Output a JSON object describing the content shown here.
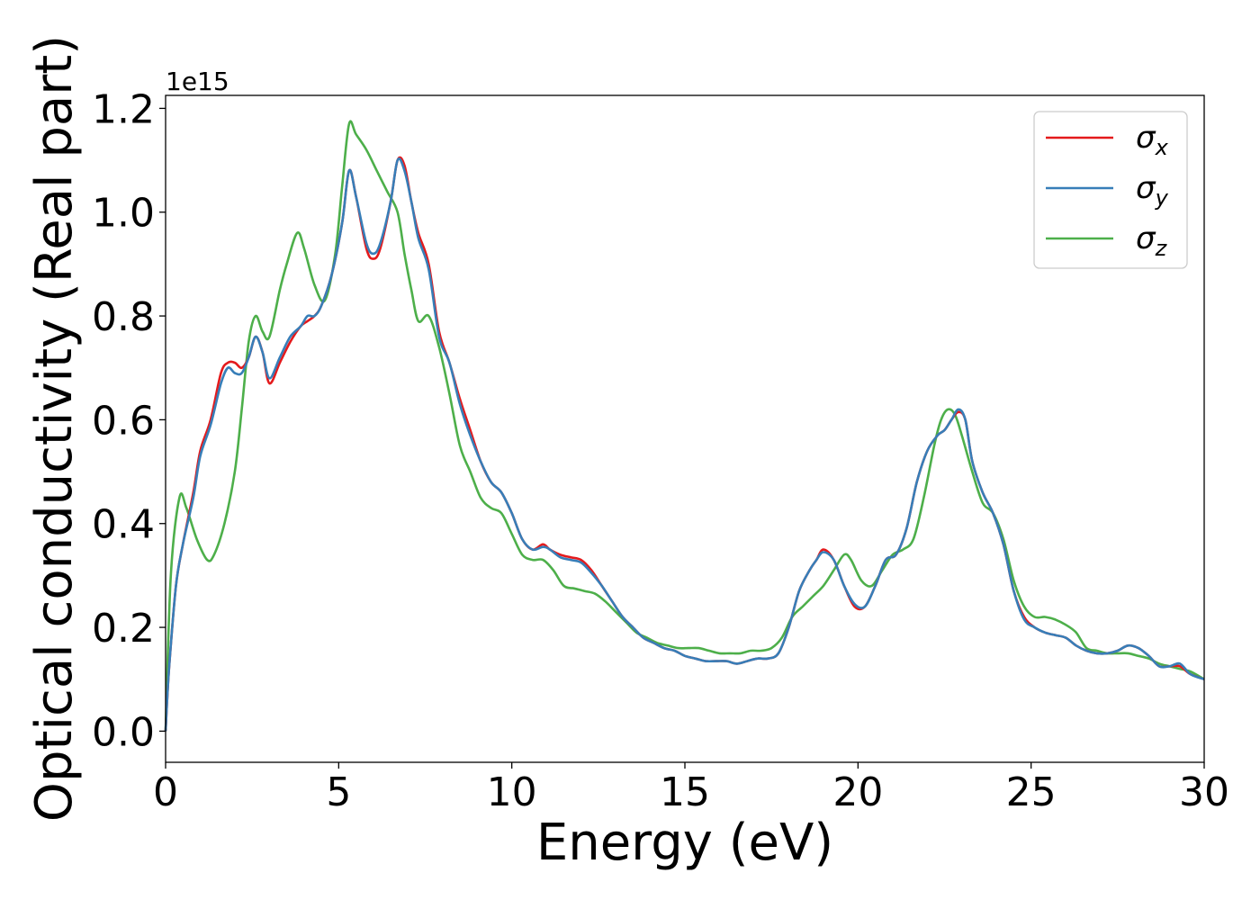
{
  "chart_data": {
    "type": "line",
    "xlabel": "Energy (eV)",
    "ylabel": "Optical conductivity (Real part)",
    "y_offset_label": "1e15",
    "xlim": [
      0,
      30
    ],
    "ylim": [
      -0.06,
      1.225
    ],
    "x_ticks": [
      0,
      5,
      10,
      15,
      20,
      25,
      30
    ],
    "x_tick_labels": [
      "0",
      "5",
      "10",
      "15",
      "20",
      "25",
      "30"
    ],
    "y_ticks": [
      0.0,
      0.2,
      0.4,
      0.6,
      0.8,
      1.0,
      1.2
    ],
    "y_tick_labels": [
      "0.0",
      "0.2",
      "0.4",
      "0.6",
      "0.8",
      "1.0",
      "1.2"
    ],
    "grid": false,
    "legend_position": "top-right",
    "series": [
      {
        "name": "σx",
        "symbol": "σ",
        "subscript": "x",
        "color": "#e41a1c",
        "x": [
          0,
          0.1,
          0.3,
          0.5,
          0.8,
          1.0,
          1.3,
          1.6,
          1.8,
          2.0,
          2.2,
          2.4,
          2.6,
          2.8,
          3.0,
          3.3,
          3.6,
          3.9,
          4.1,
          4.3,
          4.5,
          4.8,
          5.1,
          5.3,
          5.5,
          5.8,
          6.0,
          6.2,
          6.5,
          6.7,
          6.9,
          7.1,
          7.3,
          7.6,
          7.9,
          8.2,
          8.5,
          8.8,
          9.1,
          9.4,
          9.7,
          10.0,
          10.3,
          10.6,
          10.9,
          11.1,
          11.4,
          11.7,
          12.0,
          12.3,
          12.6,
          12.9,
          13.2,
          13.5,
          13.8,
          14.1,
          14.4,
          14.7,
          15.0,
          15.3,
          15.6,
          15.9,
          16.2,
          16.5,
          16.8,
          17.1,
          17.4,
          17.7,
          18.0,
          18.3,
          18.6,
          18.8,
          19.0,
          19.3,
          19.6,
          19.9,
          20.2,
          20.5,
          20.8,
          21.1,
          21.4,
          21.7,
          22.0,
          22.3,
          22.5,
          22.7,
          22.9,
          23.1,
          23.3,
          23.6,
          23.9,
          24.2,
          24.5,
          24.8,
          25.1,
          25.4,
          25.7,
          26.0,
          26.3,
          26.6,
          26.9,
          27.2,
          27.5,
          27.8,
          28.1,
          28.4,
          28.7,
          29.0,
          29.3,
          29.6,
          30.0
        ],
        "y": [
          0.0,
          0.12,
          0.28,
          0.36,
          0.46,
          0.54,
          0.6,
          0.69,
          0.71,
          0.71,
          0.7,
          0.72,
          0.76,
          0.73,
          0.67,
          0.71,
          0.75,
          0.78,
          0.79,
          0.8,
          0.82,
          0.88,
          0.98,
          1.08,
          1.03,
          0.93,
          0.91,
          0.93,
          1.02,
          1.1,
          1.09,
          1.02,
          0.96,
          0.9,
          0.77,
          0.71,
          0.64,
          0.58,
          0.52,
          0.48,
          0.46,
          0.42,
          0.37,
          0.35,
          0.36,
          0.35,
          0.34,
          0.335,
          0.33,
          0.31,
          0.28,
          0.25,
          0.22,
          0.2,
          0.18,
          0.17,
          0.16,
          0.155,
          0.145,
          0.14,
          0.135,
          0.135,
          0.135,
          0.13,
          0.135,
          0.14,
          0.14,
          0.15,
          0.2,
          0.27,
          0.31,
          0.33,
          0.35,
          0.33,
          0.28,
          0.24,
          0.24,
          0.28,
          0.33,
          0.34,
          0.39,
          0.48,
          0.54,
          0.57,
          0.58,
          0.6,
          0.615,
          0.6,
          0.52,
          0.46,
          0.42,
          0.36,
          0.27,
          0.22,
          0.2,
          0.19,
          0.185,
          0.18,
          0.165,
          0.155,
          0.15,
          0.15,
          0.155,
          0.165,
          0.16,
          0.145,
          0.125,
          0.125,
          0.125,
          0.11,
          0.1
        ]
      },
      {
        "name": "σy",
        "symbol": "σ",
        "subscript": "y",
        "color": "#377eb8",
        "x": [
          0,
          0.1,
          0.3,
          0.5,
          0.8,
          1.0,
          1.3,
          1.6,
          1.8,
          2.0,
          2.2,
          2.4,
          2.6,
          2.8,
          3.0,
          3.3,
          3.6,
          3.9,
          4.1,
          4.3,
          4.5,
          4.8,
          5.1,
          5.3,
          5.5,
          5.8,
          6.0,
          6.2,
          6.5,
          6.7,
          6.9,
          7.1,
          7.3,
          7.6,
          7.9,
          8.2,
          8.5,
          8.8,
          9.1,
          9.4,
          9.7,
          10.0,
          10.3,
          10.6,
          10.9,
          11.1,
          11.4,
          11.7,
          12.0,
          12.3,
          12.6,
          12.9,
          13.2,
          13.5,
          13.8,
          14.1,
          14.4,
          14.7,
          15.0,
          15.3,
          15.6,
          15.9,
          16.2,
          16.5,
          16.8,
          17.1,
          17.4,
          17.7,
          18.0,
          18.3,
          18.6,
          18.8,
          19.0,
          19.3,
          19.6,
          19.9,
          20.2,
          20.5,
          20.8,
          21.1,
          21.4,
          21.7,
          22.0,
          22.3,
          22.5,
          22.7,
          22.9,
          23.1,
          23.3,
          23.6,
          23.9,
          24.2,
          24.5,
          24.8,
          25.1,
          25.4,
          25.7,
          26.0,
          26.3,
          26.6,
          26.9,
          27.2,
          27.5,
          27.8,
          28.1,
          28.4,
          28.7,
          29.0,
          29.3,
          29.6,
          30.0
        ],
        "y": [
          0.0,
          0.12,
          0.28,
          0.36,
          0.45,
          0.53,
          0.59,
          0.67,
          0.7,
          0.69,
          0.69,
          0.72,
          0.76,
          0.73,
          0.68,
          0.72,
          0.76,
          0.78,
          0.8,
          0.8,
          0.82,
          0.88,
          0.98,
          1.08,
          1.03,
          0.94,
          0.92,
          0.94,
          1.02,
          1.1,
          1.08,
          1.02,
          0.95,
          0.89,
          0.76,
          0.71,
          0.63,
          0.57,
          0.52,
          0.48,
          0.46,
          0.42,
          0.37,
          0.35,
          0.355,
          0.35,
          0.335,
          0.33,
          0.325,
          0.305,
          0.28,
          0.25,
          0.22,
          0.2,
          0.18,
          0.17,
          0.16,
          0.155,
          0.145,
          0.14,
          0.135,
          0.135,
          0.135,
          0.13,
          0.135,
          0.14,
          0.14,
          0.15,
          0.2,
          0.27,
          0.31,
          0.33,
          0.345,
          0.33,
          0.28,
          0.245,
          0.24,
          0.28,
          0.33,
          0.34,
          0.39,
          0.48,
          0.54,
          0.57,
          0.58,
          0.6,
          0.62,
          0.6,
          0.52,
          0.46,
          0.42,
          0.36,
          0.27,
          0.215,
          0.2,
          0.19,
          0.185,
          0.18,
          0.165,
          0.155,
          0.15,
          0.15,
          0.155,
          0.165,
          0.16,
          0.145,
          0.125,
          0.125,
          0.13,
          0.11,
          0.1
        ]
      },
      {
        "name": "σz",
        "symbol": "σ",
        "subscript": "z",
        "color": "#4daf4a",
        "x": [
          0,
          0.15,
          0.4,
          0.6,
          0.9,
          1.2,
          1.4,
          1.7,
          2.0,
          2.2,
          2.4,
          2.6,
          2.8,
          3.0,
          3.3,
          3.5,
          3.8,
          4.0,
          4.3,
          4.6,
          4.9,
          5.1,
          5.3,
          5.5,
          5.8,
          6.1,
          6.4,
          6.7,
          6.9,
          7.1,
          7.3,
          7.6,
          7.9,
          8.2,
          8.5,
          8.8,
          9.1,
          9.4,
          9.7,
          10.0,
          10.3,
          10.6,
          10.9,
          11.2,
          11.5,
          11.8,
          12.1,
          12.4,
          12.7,
          13.0,
          13.3,
          13.6,
          13.9,
          14.2,
          14.5,
          14.8,
          15.1,
          15.4,
          15.7,
          16.0,
          16.3,
          16.6,
          16.9,
          17.2,
          17.5,
          17.8,
          18.1,
          18.4,
          18.7,
          19.0,
          19.3,
          19.6,
          19.8,
          20.1,
          20.4,
          20.7,
          21.0,
          21.3,
          21.6,
          21.9,
          22.2,
          22.4,
          22.6,
          22.8,
          23.0,
          23.3,
          23.6,
          23.9,
          24.2,
          24.5,
          24.8,
          25.1,
          25.4,
          25.7,
          26.0,
          26.3,
          26.6,
          26.9,
          27.2,
          27.5,
          27.8,
          28.1,
          28.4,
          28.7,
          29.0,
          29.3,
          29.6,
          30.0
        ],
        "y": [
          0.0,
          0.3,
          0.45,
          0.43,
          0.37,
          0.33,
          0.34,
          0.4,
          0.5,
          0.62,
          0.75,
          0.8,
          0.77,
          0.76,
          0.85,
          0.9,
          0.96,
          0.93,
          0.86,
          0.83,
          0.92,
          1.05,
          1.17,
          1.15,
          1.12,
          1.08,
          1.04,
          1.0,
          0.92,
          0.85,
          0.79,
          0.8,
          0.74,
          0.65,
          0.55,
          0.5,
          0.45,
          0.43,
          0.42,
          0.38,
          0.34,
          0.33,
          0.33,
          0.31,
          0.28,
          0.275,
          0.27,
          0.265,
          0.25,
          0.23,
          0.21,
          0.19,
          0.18,
          0.17,
          0.165,
          0.16,
          0.16,
          0.16,
          0.155,
          0.15,
          0.15,
          0.15,
          0.155,
          0.155,
          0.16,
          0.18,
          0.22,
          0.24,
          0.26,
          0.28,
          0.31,
          0.34,
          0.33,
          0.29,
          0.28,
          0.31,
          0.34,
          0.35,
          0.37,
          0.45,
          0.55,
          0.6,
          0.62,
          0.61,
          0.57,
          0.5,
          0.44,
          0.42,
          0.37,
          0.29,
          0.24,
          0.22,
          0.22,
          0.215,
          0.205,
          0.19,
          0.16,
          0.155,
          0.15,
          0.15,
          0.15,
          0.145,
          0.14,
          0.13,
          0.125,
          0.12,
          0.115,
          0.1
        ]
      }
    ]
  }
}
